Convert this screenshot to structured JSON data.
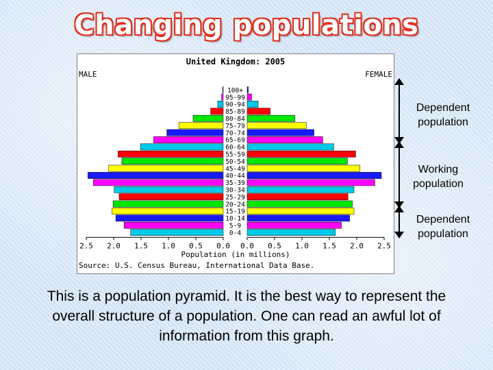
{
  "slide": {
    "title": "Changing populations",
    "annotations": {
      "dependent_top": "Dependent population",
      "working": "Working population",
      "dependent_bottom": "Dependent population"
    },
    "caption": "This is a population pyramid. It is the best way to represent the overall structure of a population. One can read an awful lot of information from this graph."
  },
  "chart_data": {
    "type": "bar",
    "orientation": "horizontal-pyramid",
    "title": "United Kingdom: 2005",
    "left_label": "MALE",
    "right_label": "FEMALE",
    "xlabel": "Population (in millions)",
    "source": "Source: U.S. Census Bureau, International Data Base.",
    "xlim": [
      0,
      2.5
    ],
    "x_ticks_left": [
      "2.5",
      "2.0",
      "1.5",
      "1.0",
      "0.5",
      "0.0"
    ],
    "x_ticks_right": [
      "0.0",
      "0.5",
      "1.0",
      "1.5",
      "2.0",
      "2.5"
    ],
    "grid": false,
    "categories": [
      "100+",
      "95-99",
      "90-94",
      "85-89",
      "80-84",
      "75-79",
      "70-74",
      "65-69",
      "60-64",
      "55-59",
      "50-54",
      "45-49",
      "40-44",
      "35-39",
      "30-34",
      "25-29",
      "20-24",
      "15-19",
      "10-14",
      "5-9",
      "0-4"
    ],
    "series": [
      {
        "name": "MALE",
        "values": [
          0.01,
          0.03,
          0.1,
          0.23,
          0.55,
          0.81,
          1.03,
          1.27,
          1.51,
          1.92,
          1.85,
          2.09,
          2.47,
          2.37,
          1.99,
          1.9,
          2.01,
          2.03,
          1.96,
          1.81,
          1.69
        ]
      },
      {
        "name": "FEMALE",
        "values": [
          0.02,
          0.08,
          0.2,
          0.42,
          0.87,
          1.08,
          1.22,
          1.38,
          1.58,
          1.98,
          1.83,
          2.06,
          2.45,
          2.33,
          1.95,
          1.84,
          1.92,
          1.95,
          1.87,
          1.72,
          1.61
        ]
      }
    ],
    "band_colors": [
      "#1a1aff",
      "#ff00ff",
      "#00c8e8",
      "#ff0000",
      "#00e800",
      "#ffff00",
      "#1a1aff",
      "#ff00ff",
      "#00c8e8",
      "#ff0000",
      "#00e800",
      "#ffff00",
      "#1a1aff",
      "#ff00ff",
      "#00c8e8",
      "#ff0000",
      "#00e800",
      "#ffff00",
      "#1a1aff",
      "#ff00ff",
      "#00c8e8"
    ]
  }
}
